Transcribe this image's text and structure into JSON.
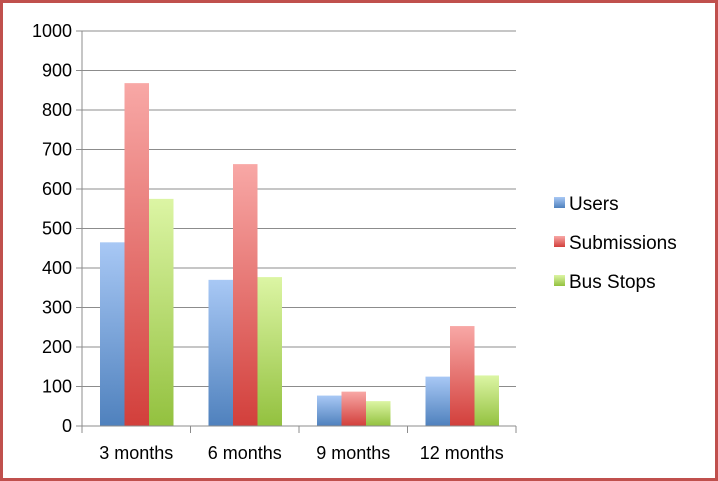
{
  "chart_data": {
    "type": "bar",
    "title": "",
    "xlabel": "",
    "ylabel": "",
    "ylim": [
      0,
      1000
    ],
    "ytick_step": 100,
    "grid": true,
    "legend_position": "right",
    "categories": [
      "3 months",
      "6 months",
      "9 months",
      "12 months"
    ],
    "series": [
      {
        "name": "Users",
        "values": [
          465,
          370,
          77,
          125
        ],
        "color": "#4f81bd",
        "color_light": "#a8c8f5"
      },
      {
        "name": "Submissions",
        "values": [
          868,
          663,
          87,
          253
        ],
        "color": "#d23f3b",
        "color_light": "#f8a8a6"
      },
      {
        "name": "Bus Stops",
        "values": [
          575,
          377,
          63,
          128
        ],
        "color": "#93c13f",
        "color_light": "#dcf5a4"
      }
    ]
  },
  "frame_color": "#c0504d"
}
